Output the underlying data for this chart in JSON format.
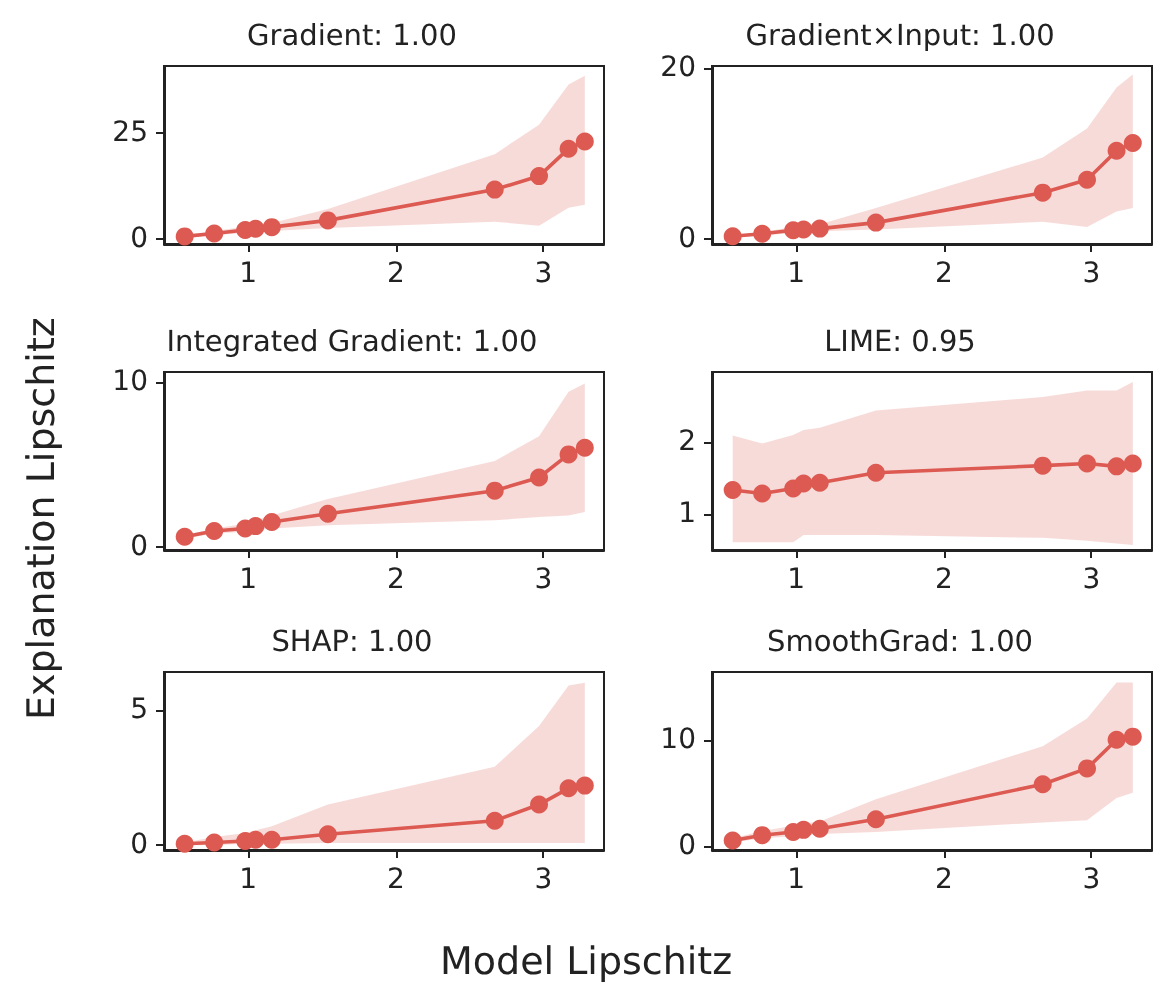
{
  "chart_data": [
    {
      "type": "line",
      "title": "Gradient: 1.00",
      "x": [
        0.57,
        0.77,
        0.98,
        1.05,
        1.16,
        1.54,
        2.67,
        2.97,
        3.17,
        3.28
      ],
      "xlim": [
        0.43,
        3.41
      ],
      "xticks": [
        1,
        2,
        3
      ],
      "ylim": [
        -1.3,
        40.9
      ],
      "yticks": [
        0,
        25
      ],
      "marker": "circle",
      "line_style": "solid",
      "series": [
        {
          "color": "#dc5a52",
          "values": [
            0.5,
            1.2,
            2.0,
            2.3,
            2.7,
            4.3,
            11.6,
            14.8,
            21.3,
            23.0
          ],
          "lower": [
            0.3,
            0.8,
            1.3,
            1.5,
            1.8,
            2.5,
            4.0,
            3.0,
            7.3,
            8.0
          ],
          "upper": [
            0.7,
            1.8,
            2.8,
            3.2,
            3.7,
            7.0,
            20.0,
            27.0,
            36.5,
            38.6
          ]
        }
      ]
    },
    {
      "type": "line",
      "title": "Gradient×Input: 1.00",
      "x": [
        0.57,
        0.77,
        0.98,
        1.05,
        1.16,
        1.54,
        2.67,
        2.97,
        3.17,
        3.28
      ],
      "xlim": [
        0.43,
        3.41
      ],
      "xticks": [
        1,
        2,
        3
      ],
      "ylim": [
        -0.6,
        20.2
      ],
      "yticks": [
        0,
        20
      ],
      "marker": "circle",
      "line_style": "solid",
      "series": [
        {
          "color": "#dc5a52",
          "values": [
            0.3,
            0.6,
            1.0,
            1.1,
            1.2,
            1.9,
            5.4,
            6.9,
            10.3,
            11.2
          ],
          "lower": [
            0.2,
            0.4,
            0.7,
            0.8,
            0.9,
            1.1,
            2.0,
            1.4,
            3.2,
            3.6
          ],
          "upper": [
            0.4,
            0.8,
            1.4,
            1.5,
            1.7,
            3.6,
            9.5,
            12.9,
            17.7,
            19.2
          ]
        }
      ]
    },
    {
      "type": "line",
      "title": "Integrated Gradient: 1.00",
      "ylabel": "Explanation Lipschitz",
      "x": [
        0.57,
        0.77,
        0.98,
        1.05,
        1.16,
        1.54,
        2.67,
        2.97,
        3.17,
        3.28
      ],
      "xlim": [
        0.43,
        3.41
      ],
      "xticks": [
        1,
        2,
        3
      ],
      "ylim": [
        -0.2,
        10.6
      ],
      "yticks": [
        0,
        10
      ],
      "marker": "circle",
      "line_style": "solid",
      "series": [
        {
          "color": "#dc5a52",
          "values": [
            0.6,
            0.95,
            1.1,
            1.25,
            1.5,
            2.0,
            3.4,
            4.2,
            5.6,
            6.0
          ],
          "lower": [
            0.5,
            0.8,
            0.9,
            1.0,
            1.1,
            1.3,
            1.6,
            1.8,
            1.9,
            2.1
          ],
          "upper": [
            0.7,
            1.1,
            1.4,
            1.6,
            1.9,
            2.9,
            5.2,
            6.7,
            9.4,
            9.9
          ]
        }
      ]
    },
    {
      "type": "line",
      "title": "LIME: 0.95",
      "x": [
        0.57,
        0.77,
        0.98,
        1.05,
        1.16,
        1.54,
        2.67,
        2.97,
        3.17,
        3.28
      ],
      "xlim": [
        0.43,
        3.41
      ],
      "xticks": [
        1,
        2,
        3
      ],
      "ylim": [
        0.49,
        2.98
      ],
      "yticks": [
        1,
        2
      ],
      "marker": "circle",
      "line_style": "solid",
      "series": [
        {
          "color": "#dc5a52",
          "values": [
            1.33,
            1.28,
            1.35,
            1.42,
            1.43,
            1.57,
            1.67,
            1.7,
            1.66,
            1.7
          ],
          "lower": [
            0.6,
            0.6,
            0.6,
            0.7,
            0.7,
            0.7,
            0.66,
            0.62,
            0.58,
            0.56
          ],
          "upper": [
            2.09,
            1.98,
            2.1,
            2.17,
            2.2,
            2.44,
            2.63,
            2.72,
            2.72,
            2.84
          ]
        }
      ]
    },
    {
      "type": "line",
      "title": "SHAP: 1.00",
      "x": [
        0.57,
        0.77,
        0.98,
        1.05,
        1.16,
        1.54,
        2.67,
        2.97,
        3.17,
        3.28
      ],
      "xlim": [
        0.43,
        3.41
      ],
      "xticks": [
        1,
        2,
        3
      ],
      "ylim": [
        -0.18,
        6.4
      ],
      "yticks": [
        0,
        5
      ],
      "marker": "circle",
      "line_style": "solid",
      "series": [
        {
          "color": "#dc5a52",
          "values": [
            0.05,
            0.1,
            0.15,
            0.2,
            0.2,
            0.4,
            0.9,
            1.5,
            2.1,
            2.2
          ],
          "lower": [
            0.0,
            0.0,
            0.05,
            0.05,
            0.05,
            0.08,
            0.08,
            0.08,
            0.08,
            0.08
          ],
          "upper": [
            0.1,
            0.3,
            0.45,
            0.55,
            0.7,
            1.5,
            2.9,
            4.4,
            5.9,
            6.0
          ]
        }
      ]
    },
    {
      "type": "line",
      "title": "SmoothGrad: 1.00",
      "xlabel": "Model Lipschitz",
      "x": [
        0.57,
        0.77,
        0.98,
        1.05,
        1.16,
        1.54,
        2.67,
        2.97,
        3.17,
        3.28
      ],
      "xlim": [
        0.43,
        3.41
      ],
      "xticks": [
        1,
        2,
        3
      ],
      "ylim": [
        -0.4,
        16.4
      ],
      "yticks": [
        0,
        10
      ],
      "marker": "circle",
      "line_style": "solid",
      "series": [
        {
          "color": "#dc5a52",
          "values": [
            0.5,
            1.0,
            1.3,
            1.5,
            1.6,
            2.5,
            5.8,
            7.3,
            10.0,
            10.3
          ],
          "lower": [
            0.3,
            0.7,
            0.9,
            1.0,
            1.1,
            1.3,
            2.2,
            2.4,
            4.5,
            5.0
          ],
          "upper": [
            0.7,
            1.4,
            1.9,
            2.1,
            2.3,
            4.4,
            9.4,
            12.0,
            15.4,
            15.4
          ]
        }
      ]
    }
  ]
}
